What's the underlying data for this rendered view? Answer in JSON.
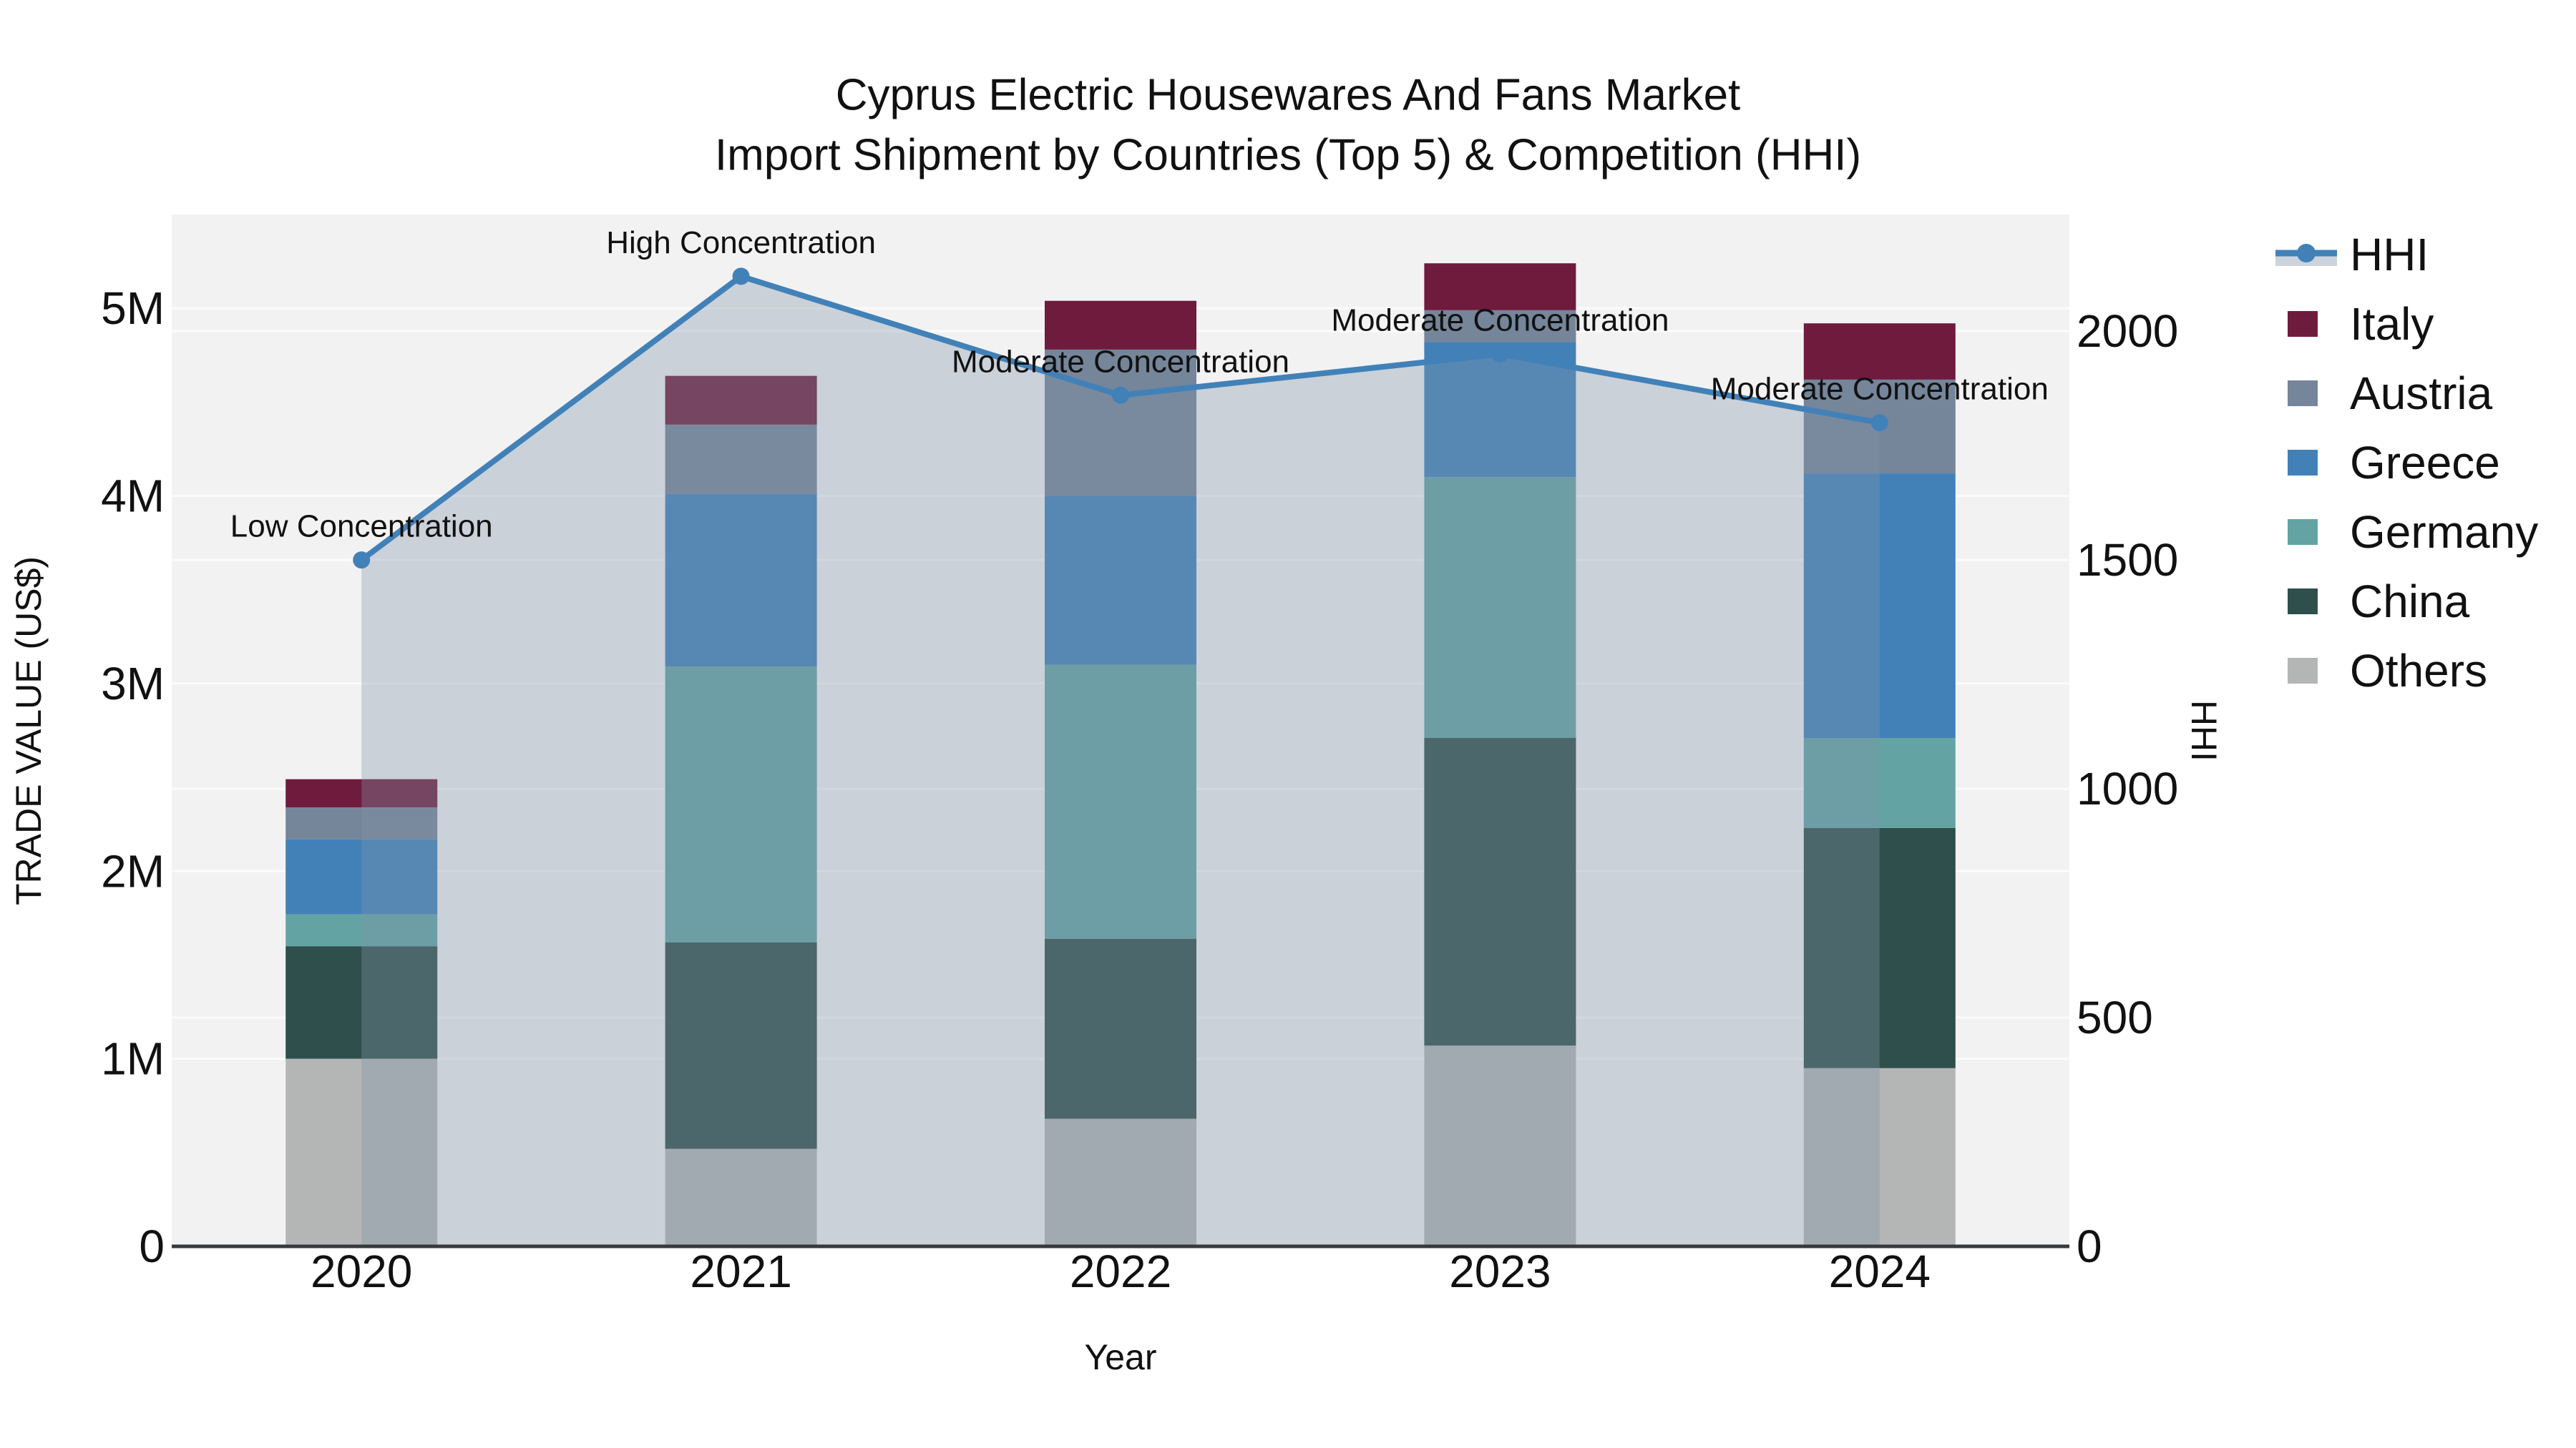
{
  "chart_data": {
    "type": "bar",
    "variant": "stacked_bars_with_overlaid_line_area",
    "title": "Cyprus Electric Housewares And Fans Market",
    "subtitle": "Import Shipment by Countries (Top 5) & Competition (HHI)",
    "categories": [
      "2020",
      "2021",
      "2022",
      "2023",
      "2024"
    ],
    "xlabel": "Year",
    "ylabel": "TRADE VALUE (US$)",
    "y2label": "HHI",
    "ylim_musd": [
      0,
      5.5
    ],
    "y2lim": [
      0,
      2255
    ],
    "grid": true,
    "plot_bg": "#f2f2f2",
    "grid_color": "#ffffff",
    "axis_line_color": "#38393d",
    "text_color": "#111111",
    "yticks": [
      {
        "value": 0,
        "label": "0"
      },
      {
        "value": 1,
        "label": "1M"
      },
      {
        "value": 2,
        "label": "2M"
      },
      {
        "value": 3,
        "label": "3M"
      },
      {
        "value": 4,
        "label": "4M"
      },
      {
        "value": 5,
        "label": "5M"
      }
    ],
    "y2ticks": [
      {
        "value": 0,
        "label": "0"
      },
      {
        "value": 500,
        "label": "500"
      },
      {
        "value": 1000,
        "label": "1000"
      },
      {
        "value": 1500,
        "label": "1500"
      },
      {
        "value": 2000,
        "label": "2000"
      }
    ],
    "series": [
      {
        "name": "Others",
        "color": "#b4b6b5",
        "values_musd": [
          1.0,
          0.52,
          0.68,
          1.07,
          0.95
        ]
      },
      {
        "name": "China",
        "color": "#2e4f4b",
        "values_musd": [
          0.6,
          1.1,
          0.96,
          1.64,
          1.28
        ]
      },
      {
        "name": "Germany",
        "color": "#64a3a3",
        "values_musd": [
          0.17,
          1.47,
          1.46,
          1.39,
          0.48
        ]
      },
      {
        "name": "Greece",
        "color": "#4181b8",
        "values_musd": [
          0.4,
          0.92,
          0.9,
          0.72,
          1.41
        ]
      },
      {
        "name": "Austria",
        "color": "#75859a",
        "values_musd": [
          0.17,
          0.37,
          0.78,
          0.17,
          0.5
        ]
      },
      {
        "name": "Italy",
        "color": "#6f1b3d",
        "values_musd": [
          0.15,
          0.26,
          0.26,
          0.25,
          0.3
        ]
      }
    ],
    "totals_musd": [
      2.49,
      4.64,
      5.04,
      5.24,
      4.92
    ],
    "hhi_line": {
      "name": "HHI",
      "axis": "right",
      "color": "#4181b8",
      "area_fill": "rgba(130,148,170,0.35)",
      "legend_band_color": "#cdd3dc",
      "values": [
        1500,
        2120,
        1860,
        1950,
        1800
      ]
    },
    "annotations": [
      {
        "category": "2020",
        "text": "Low Concentration"
      },
      {
        "category": "2021",
        "text": "High Concentration"
      },
      {
        "category": "2022",
        "text": "Moderate Concentration"
      },
      {
        "category": "2023",
        "text": "Moderate Concentration"
      },
      {
        "category": "2024",
        "text": "Moderate Concentration"
      }
    ],
    "legend": {
      "position": "right",
      "items": [
        "HHI",
        "Italy",
        "Austria",
        "Greece",
        "Germany",
        "China",
        "Others"
      ]
    }
  }
}
